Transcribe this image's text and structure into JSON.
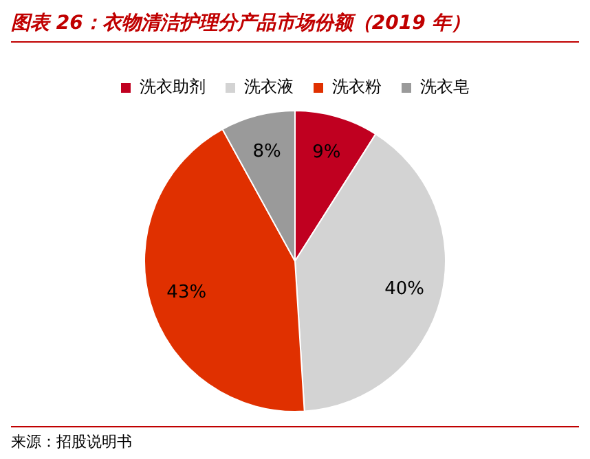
{
  "chart_data": {
    "type": "pie",
    "title": "图表 26：衣物清洁护理分产品市场份额（2019 年）",
    "categories": [
      "洗衣助剂",
      "洗衣液",
      "洗衣粉",
      "洗衣皂"
    ],
    "values": [
      9,
      40,
      43,
      8
    ],
    "colors": [
      "#c00020",
      "#d3d3d3",
      "#e03000",
      "#9a9a9a"
    ],
    "value_labels": [
      "9%",
      "40%",
      "43%",
      "8%"
    ],
    "legend": "top",
    "annotations": [
      "来源：招股说明书"
    ]
  }
}
